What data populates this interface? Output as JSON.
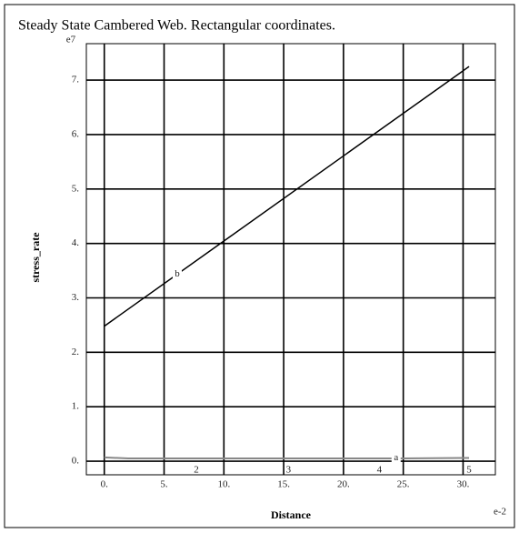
{
  "chart_data": {
    "type": "line",
    "title": "Steady State Cambered Web. Rectangular coordinates.",
    "xlabel": "Distance",
    "ylabel": "stress_rate",
    "x_multiplier": "e-2",
    "y_multiplier": "e7",
    "grid": true,
    "xlim": [
      -1.5,
      32.7
    ],
    "ylim": [
      -0.25,
      7.67
    ],
    "xticks": [
      {
        "value": 0,
        "label": "0."
      },
      {
        "value": 5,
        "label": "5."
      },
      {
        "value": 10,
        "label": "10."
      },
      {
        "value": 15,
        "label": "15."
      },
      {
        "value": 20,
        "label": "20."
      },
      {
        "value": 25,
        "label": "25."
      },
      {
        "value": 30,
        "label": "30."
      }
    ],
    "yticks": [
      {
        "value": 0,
        "label": "0."
      },
      {
        "value": 1,
        "label": "1."
      },
      {
        "value": 2,
        "label": "2."
      },
      {
        "value": 3,
        "label": "3."
      },
      {
        "value": 4,
        "label": "4."
      },
      {
        "value": 5,
        "label": "5."
      },
      {
        "value": 6,
        "label": "6."
      },
      {
        "value": 7,
        "label": "7."
      }
    ],
    "series": [
      {
        "name": "a",
        "color": "#888888",
        "x": [
          0,
          2,
          25,
          30.5
        ],
        "values": [
          0.07,
          0.05,
          0.05,
          0.06
        ]
      },
      {
        "name": "b",
        "color": "#000000",
        "x": [
          0,
          30.5
        ],
        "values": [
          2.48,
          7.25
        ]
      }
    ],
    "annotations": [
      {
        "text": "2",
        "x": 7.7,
        "y": -0.25
      },
      {
        "text": "3",
        "x": 15.4,
        "y": -0.25
      },
      {
        "text": "4",
        "x": 23,
        "y": -0.25
      },
      {
        "text": "5",
        "x": 30.5,
        "y": -0.25
      }
    ]
  }
}
